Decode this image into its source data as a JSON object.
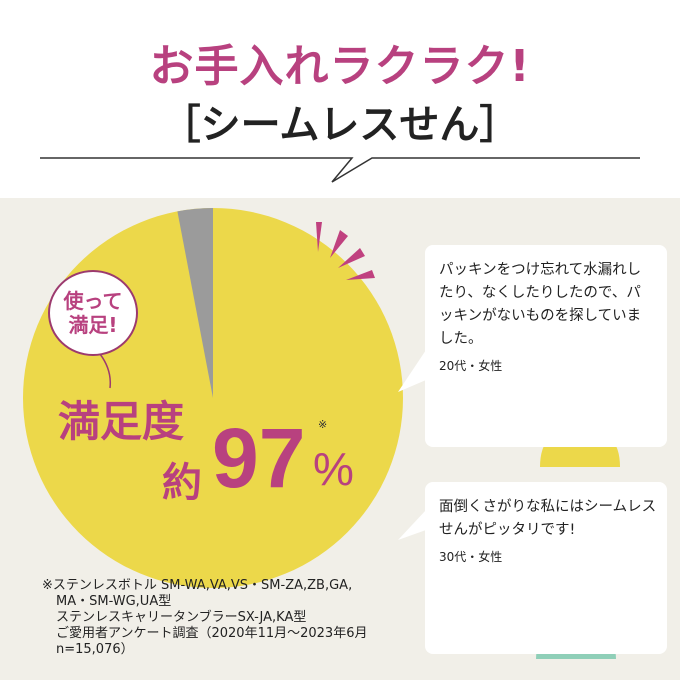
{
  "header": {
    "title": "お手入れラクラク!",
    "subtitle": "［シームレスせん］"
  },
  "colors": {
    "accent": "#b8417f",
    "pie_main": "#ecd84a",
    "pie_other": "#9b9b9b",
    "background": "#f1efe8"
  },
  "satisfaction": {
    "badge_line1": "使って",
    "badge_line2": "満足!",
    "label": "満足度",
    "prefix": "約",
    "value": "97",
    "unit": "%",
    "note_mark": "※",
    "pie_satisfied_percent": 97
  },
  "testimonials": [
    {
      "text": "パッキンをつけ忘れて水漏れしたり、なくしたりしたので、パッキンがないものを探していました。",
      "who": "20代・女性"
    },
    {
      "text": "面倒くさがりな私にはシームレスせんがピッタリです!",
      "who": "30代・女性"
    }
  ],
  "footnote": [
    "※ステンレスボトル SM-WA,VA,VS・SM-ZA,ZB,GA,",
    "MA・SM-WG,UA型",
    "ステンレスキャリータンブラーSX-JA,KA型",
    "ご愛用者アンケート調査（2020年11月～2023年6月",
    "n=15,076）"
  ]
}
